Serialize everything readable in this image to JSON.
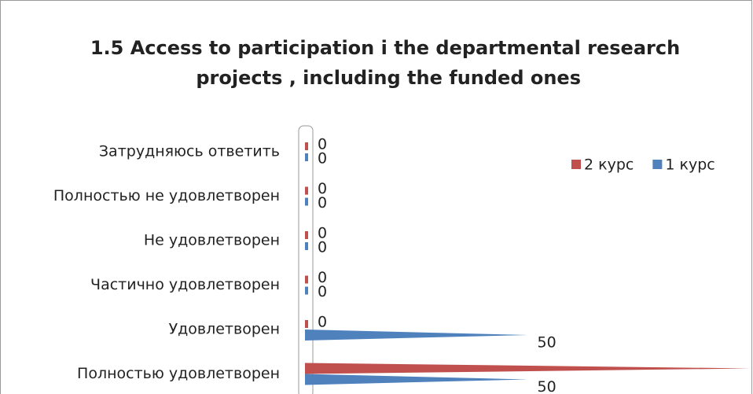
{
  "chart_data": {
    "type": "bar",
    "orientation": "horizontal",
    "title": "1.5 Access to participation i the departmental research projects , including the funded ones",
    "categories": [
      "Затрудняюсь ответить",
      "Полностью не удовлетворен",
      "Не удовлетворен",
      "Частично удовлетворен",
      "Удовлетворен",
      "Полностью удовлетворен"
    ],
    "series": [
      {
        "name": "2 курс",
        "color": "#c0504d",
        "values": [
          0,
          0,
          0,
          0,
          0,
          100
        ]
      },
      {
        "name": "1 курс",
        "color": "#4f81bd",
        "values": [
          0,
          0,
          0,
          0,
          50,
          50
        ]
      }
    ],
    "legend": "top-right"
  }
}
